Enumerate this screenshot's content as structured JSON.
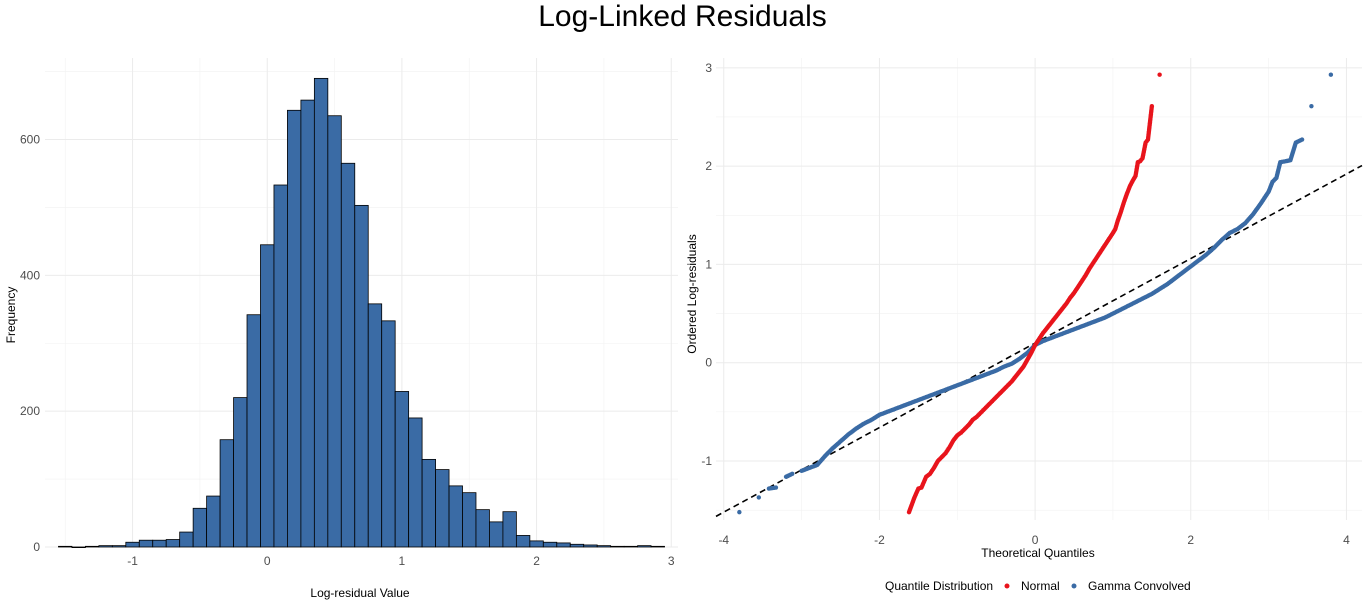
{
  "page_title": "Log-Linked Residuals",
  "chart_data": [
    {
      "type": "bar",
      "subtype": "histogram",
      "title": "",
      "xlabel": "Log-residual Value",
      "ylabel": "Frequency",
      "xlim": [
        -1.65,
        3.05
      ],
      "ylim": [
        0,
        720
      ],
      "x_ticks": [
        "-1",
        "0",
        "1",
        "2",
        "3"
      ],
      "x_tick_values": [
        -1,
        0,
        1,
        2,
        3
      ],
      "y_ticks": [
        "0",
        "200",
        "400",
        "600"
      ],
      "y_tick_values": [
        0,
        200,
        400,
        600
      ],
      "bin_width": 0.1,
      "bin_starts": [
        -1.55,
        -1.45,
        -1.35,
        -1.25,
        -1.15,
        -1.05,
        -0.95,
        -0.85,
        -0.75,
        -0.65,
        -0.55,
        -0.45,
        -0.35,
        -0.25,
        -0.15,
        -0.05,
        0.05,
        0.15,
        0.25,
        0.35,
        0.45,
        0.55,
        0.65,
        0.75,
        0.85,
        0.95,
        1.05,
        1.15,
        1.25,
        1.35,
        1.45,
        1.55,
        1.65,
        1.75,
        1.85,
        1.95,
        2.05,
        2.15,
        2.25,
        2.35,
        2.45,
        2.55,
        2.65,
        2.75,
        2.85
      ],
      "values": [
        1,
        0,
        1,
        2,
        2,
        7,
        10,
        10,
        11,
        22,
        57,
        75,
        158,
        220,
        342,
        445,
        533,
        643,
        658,
        690,
        635,
        565,
        503,
        358,
        333,
        229,
        190,
        129,
        114,
        90,
        80,
        55,
        37,
        52,
        17,
        9,
        7,
        6,
        4,
        3,
        2,
        1,
        1,
        2,
        1
      ],
      "bar_color": "#3a6ba5",
      "edge_color": "#000000",
      "grid": true
    },
    {
      "type": "scatter",
      "title": "",
      "xlabel": "Theoretical Quantiles",
      "ylabel": "Ordered Log-residuals",
      "xlim": [
        -4.1,
        4.2
      ],
      "ylim": [
        -1.6,
        3.1
      ],
      "x_ticks": [
        "-4",
        "-2",
        "0",
        "2",
        "4"
      ],
      "x_tick_values": [
        -4,
        -2,
        0,
        2,
        4
      ],
      "y_ticks": [
        "-1",
        "0",
        "1",
        "2",
        "3"
      ],
      "y_tick_values": [
        -1,
        0,
        1,
        2,
        3
      ],
      "grid": true,
      "reference_line": {
        "style": "dashed",
        "color": "#000000",
        "intercept": 0.2,
        "slope": 0.43
      },
      "series": [
        {
          "name": "Normal",
          "color": "#e8141c",
          "points": [
            [
              -1.62,
              -1.52
            ],
            [
              -1.55,
              -1.37
            ],
            [
              -1.5,
              -1.28
            ],
            [
              -1.46,
              -1.27
            ],
            [
              -1.4,
              -1.16
            ],
            [
              -1.35,
              -1.13
            ],
            [
              -1.3,
              -1.07
            ],
            [
              -1.25,
              -1.0
            ],
            [
              -1.2,
              -0.96
            ],
            [
              -1.15,
              -0.92
            ],
            [
              -1.1,
              -0.86
            ],
            [
              -1.05,
              -0.79
            ],
            [
              -1.0,
              -0.74
            ],
            [
              -0.95,
              -0.71
            ],
            [
              -0.9,
              -0.67
            ],
            [
              -0.85,
              -0.63
            ],
            [
              -0.8,
              -0.58
            ],
            [
              -0.75,
              -0.55
            ],
            [
              -0.7,
              -0.51
            ],
            [
              -0.65,
              -0.47
            ],
            [
              -0.6,
              -0.43
            ],
            [
              -0.55,
              -0.39
            ],
            [
              -0.5,
              -0.35
            ],
            [
              -0.45,
              -0.31
            ],
            [
              -0.4,
              -0.27
            ],
            [
              -0.35,
              -0.23
            ],
            [
              -0.3,
              -0.19
            ],
            [
              -0.25,
              -0.14
            ],
            [
              -0.2,
              -0.09
            ],
            [
              -0.15,
              -0.04
            ],
            [
              -0.1,
              0.03
            ],
            [
              -0.05,
              0.1
            ],
            [
              0.0,
              0.18
            ],
            [
              0.05,
              0.24
            ],
            [
              0.1,
              0.3
            ],
            [
              0.15,
              0.35
            ],
            [
              0.2,
              0.4
            ],
            [
              0.25,
              0.45
            ],
            [
              0.3,
              0.5
            ],
            [
              0.35,
              0.55
            ],
            [
              0.4,
              0.6
            ],
            [
              0.45,
              0.66
            ],
            [
              0.5,
              0.71
            ],
            [
              0.55,
              0.77
            ],
            [
              0.6,
              0.83
            ],
            [
              0.65,
              0.89
            ],
            [
              0.7,
              0.96
            ],
            [
              0.75,
              1.02
            ],
            [
              0.8,
              1.08
            ],
            [
              0.85,
              1.14
            ],
            [
              0.9,
              1.2
            ],
            [
              0.95,
              1.26
            ],
            [
              1.0,
              1.32
            ],
            [
              1.03,
              1.36
            ],
            [
              1.06,
              1.44
            ],
            [
              1.1,
              1.53
            ],
            [
              1.14,
              1.63
            ],
            [
              1.18,
              1.72
            ],
            [
              1.22,
              1.8
            ],
            [
              1.26,
              1.86
            ],
            [
              1.29,
              1.9
            ],
            [
              1.32,
              2.04
            ],
            [
              1.35,
              2.05
            ],
            [
              1.38,
              2.08
            ],
            [
              1.42,
              2.24
            ],
            [
              1.45,
              2.27
            ],
            [
              1.5,
              2.61
            ],
            [
              1.6,
              2.93
            ]
          ]
        },
        {
          "name": "Gamma Convolved",
          "color": "#3a6ba5",
          "points": [
            [
              -3.8,
              -1.52
            ],
            [
              -3.55,
              -1.37
            ],
            [
              -3.42,
              -1.28
            ],
            [
              -3.33,
              -1.27
            ],
            [
              -3.2,
              -1.16
            ],
            [
              -3.12,
              -1.13
            ],
            [
              -3.0,
              -1.1
            ],
            [
              -2.9,
              -1.07
            ],
            [
              -2.8,
              -1.04
            ],
            [
              -2.7,
              -0.95
            ],
            [
              -2.6,
              -0.87
            ],
            [
              -2.5,
              -0.8
            ],
            [
              -2.4,
              -0.73
            ],
            [
              -2.3,
              -0.67
            ],
            [
              -2.2,
              -0.62
            ],
            [
              -2.1,
              -0.58
            ],
            [
              -2.0,
              -0.53
            ],
            [
              -1.9,
              -0.5
            ],
            [
              -1.8,
              -0.47
            ],
            [
              -1.7,
              -0.44
            ],
            [
              -1.6,
              -0.41
            ],
            [
              -1.5,
              -0.38
            ],
            [
              -1.4,
              -0.35
            ],
            [
              -1.3,
              -0.32
            ],
            [
              -1.2,
              -0.29
            ],
            [
              -1.1,
              -0.26
            ],
            [
              -1.0,
              -0.23
            ],
            [
              -0.9,
              -0.2
            ],
            [
              -0.8,
              -0.17
            ],
            [
              -0.7,
              -0.14
            ],
            [
              -0.6,
              -0.11
            ],
            [
              -0.5,
              -0.08
            ],
            [
              -0.4,
              -0.04
            ],
            [
              -0.3,
              -0.01
            ],
            [
              -0.2,
              0.04
            ],
            [
              -0.1,
              0.1
            ],
            [
              0.0,
              0.18
            ],
            [
              0.1,
              0.22
            ],
            [
              0.2,
              0.25
            ],
            [
              0.3,
              0.28
            ],
            [
              0.4,
              0.31
            ],
            [
              0.5,
              0.34
            ],
            [
              0.6,
              0.37
            ],
            [
              0.7,
              0.4
            ],
            [
              0.8,
              0.43
            ],
            [
              0.9,
              0.46
            ],
            [
              1.0,
              0.5
            ],
            [
              1.1,
              0.54
            ],
            [
              1.2,
              0.58
            ],
            [
              1.3,
              0.62
            ],
            [
              1.4,
              0.66
            ],
            [
              1.5,
              0.7
            ],
            [
              1.6,
              0.75
            ],
            [
              1.7,
              0.8
            ],
            [
              1.8,
              0.86
            ],
            [
              1.9,
              0.92
            ],
            [
              2.0,
              0.98
            ],
            [
              2.1,
              1.04
            ],
            [
              2.2,
              1.1
            ],
            [
              2.3,
              1.17
            ],
            [
              2.4,
              1.25
            ],
            [
              2.5,
              1.32
            ],
            [
              2.6,
              1.36
            ],
            [
              2.7,
              1.42
            ],
            [
              2.8,
              1.51
            ],
            [
              2.9,
              1.62
            ],
            [
              3.0,
              1.74
            ],
            [
              3.05,
              1.84
            ],
            [
              3.1,
              1.88
            ],
            [
              3.15,
              2.04
            ],
            [
              3.22,
              2.05
            ],
            [
              3.28,
              2.06
            ],
            [
              3.35,
              2.24
            ],
            [
              3.43,
              2.27
            ],
            [
              3.55,
              2.61
            ],
            [
              3.8,
              2.93
            ]
          ]
        }
      ],
      "legend": {
        "title": "Quantile Distribution",
        "position": "bottom",
        "entries": [
          "Normal",
          "Gamma Convolved"
        ]
      }
    }
  ]
}
